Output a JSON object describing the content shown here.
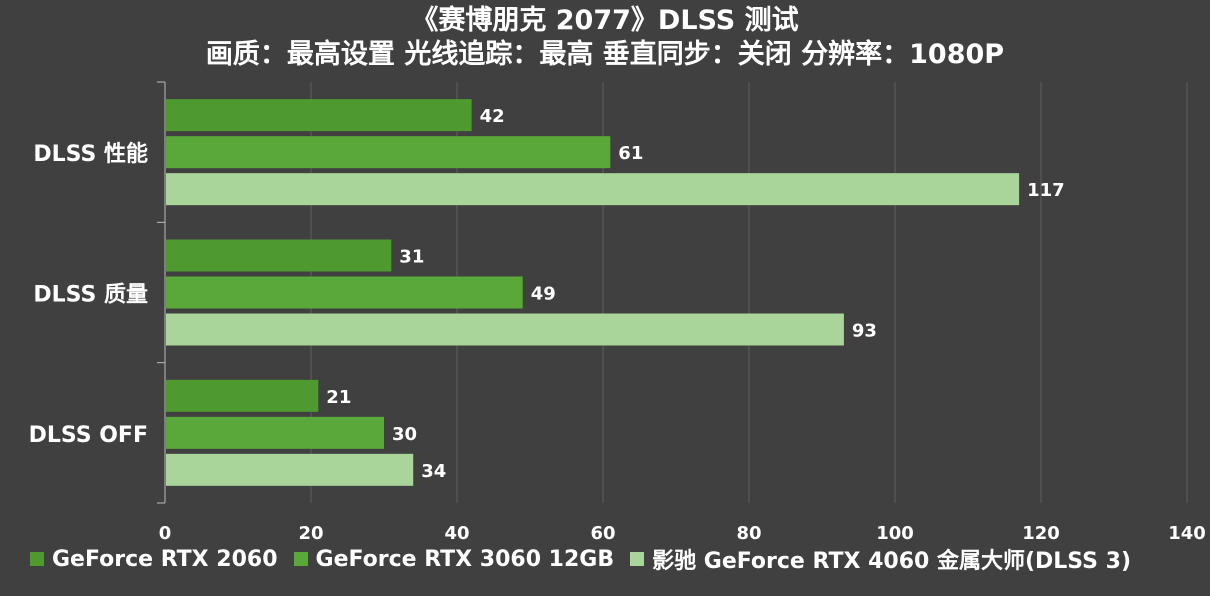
{
  "chart_data": {
    "type": "bar",
    "orientation": "horizontal",
    "title": "《赛博朋克 2077》DLSS 测试",
    "subtitle": "画质：最高设置 光线追踪：最高  垂直同步：关闭 分辨率：1080P",
    "xlabel": "",
    "ylabel": "",
    "categories": [
      "DLSS 性能",
      "DLSS 质量",
      "DLSS OFF"
    ],
    "xlim": [
      0,
      140
    ],
    "xticks": [
      0,
      20,
      40,
      60,
      80,
      100,
      120,
      140
    ],
    "grid": true,
    "legend_position": "bottom",
    "series": [
      {
        "name": "GeForce RTX 2060",
        "color": "#4E9A2E",
        "values": [
          42,
          31,
          21
        ]
      },
      {
        "name": "GeForce RTX 3060 12GB",
        "color": "#5BA83A",
        "values": [
          61,
          49,
          30
        ]
      },
      {
        "name": "影驰 GeForce RTX 4060 金属大师(DLSS 3)",
        "color": "#A9D49A",
        "values": [
          117,
          93,
          34
        ]
      }
    ]
  }
}
